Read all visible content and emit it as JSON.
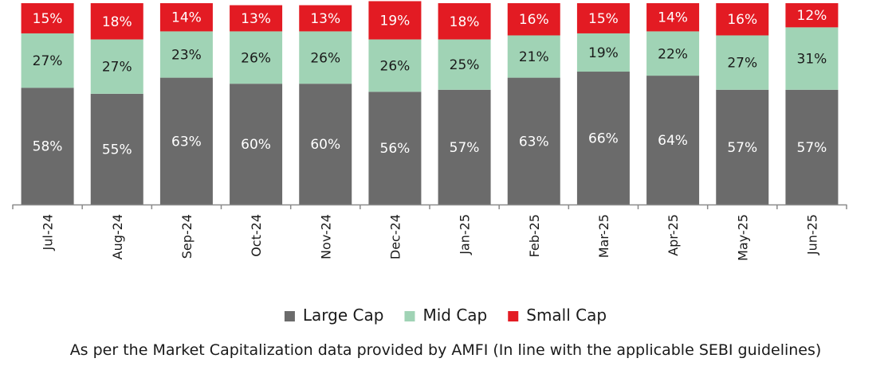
{
  "chart_data": {
    "type": "bar",
    "stacked": true,
    "categories": [
      "Jul-24",
      "Aug-24",
      "Sep-24",
      "Oct-24",
      "Nov-24",
      "Dec-24",
      "Jan-25",
      "Feb-25",
      "Mar-25",
      "Apr-25",
      "May-25",
      "Jun-25"
    ],
    "series": [
      {
        "name": "Large Cap",
        "values": [
          58,
          55,
          63,
          60,
          60,
          56,
          57,
          63,
          66,
          64,
          57,
          57
        ]
      },
      {
        "name": "Mid Cap",
        "values": [
          27,
          27,
          23,
          26,
          26,
          26,
          25,
          21,
          19,
          22,
          27,
          31
        ]
      },
      {
        "name": "Small Cap",
        "values": [
          15,
          18,
          14,
          13,
          13,
          19,
          18,
          16,
          15,
          14,
          16,
          12
        ]
      }
    ],
    "value_suffix": "%",
    "ylim": [
      0,
      100
    ],
    "grid": false,
    "legend_placement": "bottom",
    "footnote": "As per the Market Capitalization data provided by AMFI (In line with the applicable SEBI guidelines)",
    "colors": {
      "Large Cap": "#6b6b6b",
      "Mid Cap": "#a0d3b5",
      "Small Cap": "#e31b23",
      "axis": "#8a8a8a",
      "small_label": "#ffffff",
      "mid_label": "#1a1a1a",
      "large_label": "#ffffff"
    }
  }
}
